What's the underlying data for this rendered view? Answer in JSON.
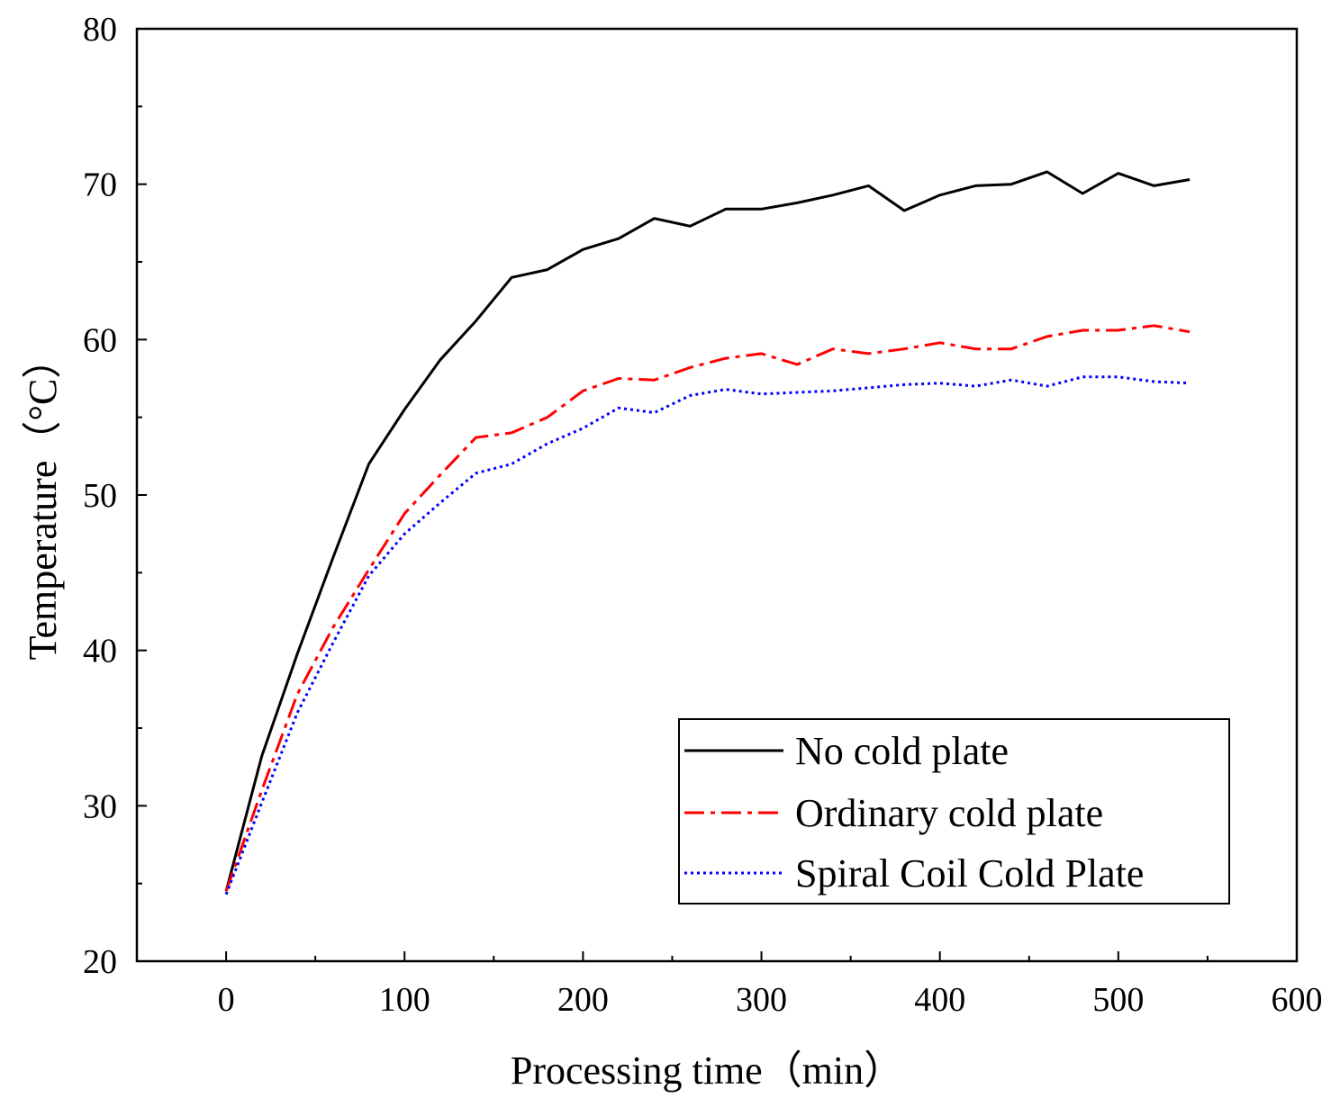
{
  "chart_data": {
    "type": "line",
    "title": "",
    "xlabel": "Processing time（min）",
    "ylabel": "Temperature（°C）",
    "xlim": [
      -50,
      600
    ],
    "ylim": [
      20,
      80
    ],
    "xticks": [
      0,
      100,
      200,
      300,
      400,
      500,
      600
    ],
    "yticks": [
      20,
      30,
      40,
      50,
      60,
      70,
      80
    ],
    "grid": false,
    "legend_position": "bottom-right",
    "x": [
      0,
      20,
      40,
      60,
      80,
      100,
      120,
      140,
      160,
      180,
      200,
      220,
      240,
      260,
      280,
      300,
      320,
      340,
      360,
      380,
      400,
      420,
      440,
      460,
      480,
      500,
      520,
      540
    ],
    "series": [
      {
        "name": "No cold plate",
        "color": "#000000",
        "style": "solid",
        "values": [
          24.5,
          33.2,
          39.8,
          46.0,
          52.0,
          55.5,
          58.7,
          61.2,
          64.0,
          64.5,
          65.8,
          66.5,
          67.8,
          67.3,
          68.4,
          68.4,
          68.8,
          69.3,
          69.9,
          68.3,
          69.3,
          69.9,
          70.0,
          70.8,
          69.4,
          70.7,
          69.9,
          70.3
        ]
      },
      {
        "name": "Ordinary cold plate",
        "color": "#ff0000",
        "style": "dashdot",
        "values": [
          24.5,
          31.0,
          37.2,
          41.5,
          45.2,
          48.8,
          51.3,
          53.7,
          54.0,
          55.0,
          56.7,
          57.5,
          57.4,
          58.2,
          58.8,
          59.1,
          58.4,
          59.4,
          59.1,
          59.4,
          59.8,
          59.4,
          59.4,
          60.2,
          60.6,
          60.6,
          60.9,
          60.5
        ]
      },
      {
        "name": "Spiral Coil Cold Plate",
        "color": "#0000ff",
        "style": "dotted",
        "values": [
          24.3,
          30.2,
          36.0,
          40.5,
          44.8,
          47.5,
          49.5,
          51.4,
          52.0,
          53.3,
          54.3,
          55.6,
          55.3,
          56.4,
          56.8,
          56.5,
          56.6,
          56.7,
          56.9,
          57.1,
          57.2,
          57.0,
          57.4,
          57.0,
          57.6,
          57.6,
          57.3,
          57.2
        ]
      }
    ]
  }
}
